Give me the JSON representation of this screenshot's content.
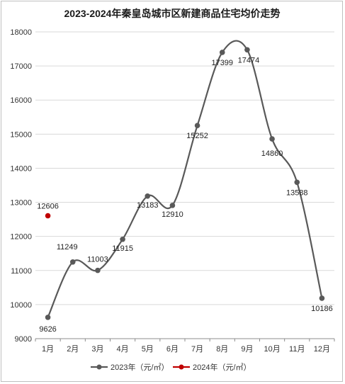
{
  "chart_data": {
    "type": "line",
    "title": "2023-2024年秦皇岛城市区新建商品住宅均价走势",
    "categories": [
      "1月",
      "2月",
      "3月",
      "4月",
      "5月",
      "6月",
      "7月",
      "8月",
      "9月",
      "10月",
      "11月",
      "12月"
    ],
    "ylim": [
      9000,
      18000
    ],
    "yticks": [
      9000,
      10000,
      11000,
      12000,
      13000,
      14000,
      15000,
      16000,
      17000,
      18000
    ],
    "grid": true,
    "legend_position": "bottom",
    "series": [
      {
        "name": "2023年（元/㎡）",
        "color": "#595959",
        "smooth": true,
        "values": [
          9626,
          11249,
          11003,
          11915,
          13183,
          12910,
          15252,
          17399,
          17474,
          14860,
          13588,
          10186
        ]
      },
      {
        "name": "2024年（元/㎡）",
        "color": "#c00000",
        "smooth": false,
        "values": [
          12606,
          null,
          null,
          null,
          null,
          null,
          null,
          null,
          null,
          null,
          null,
          null
        ]
      }
    ]
  }
}
